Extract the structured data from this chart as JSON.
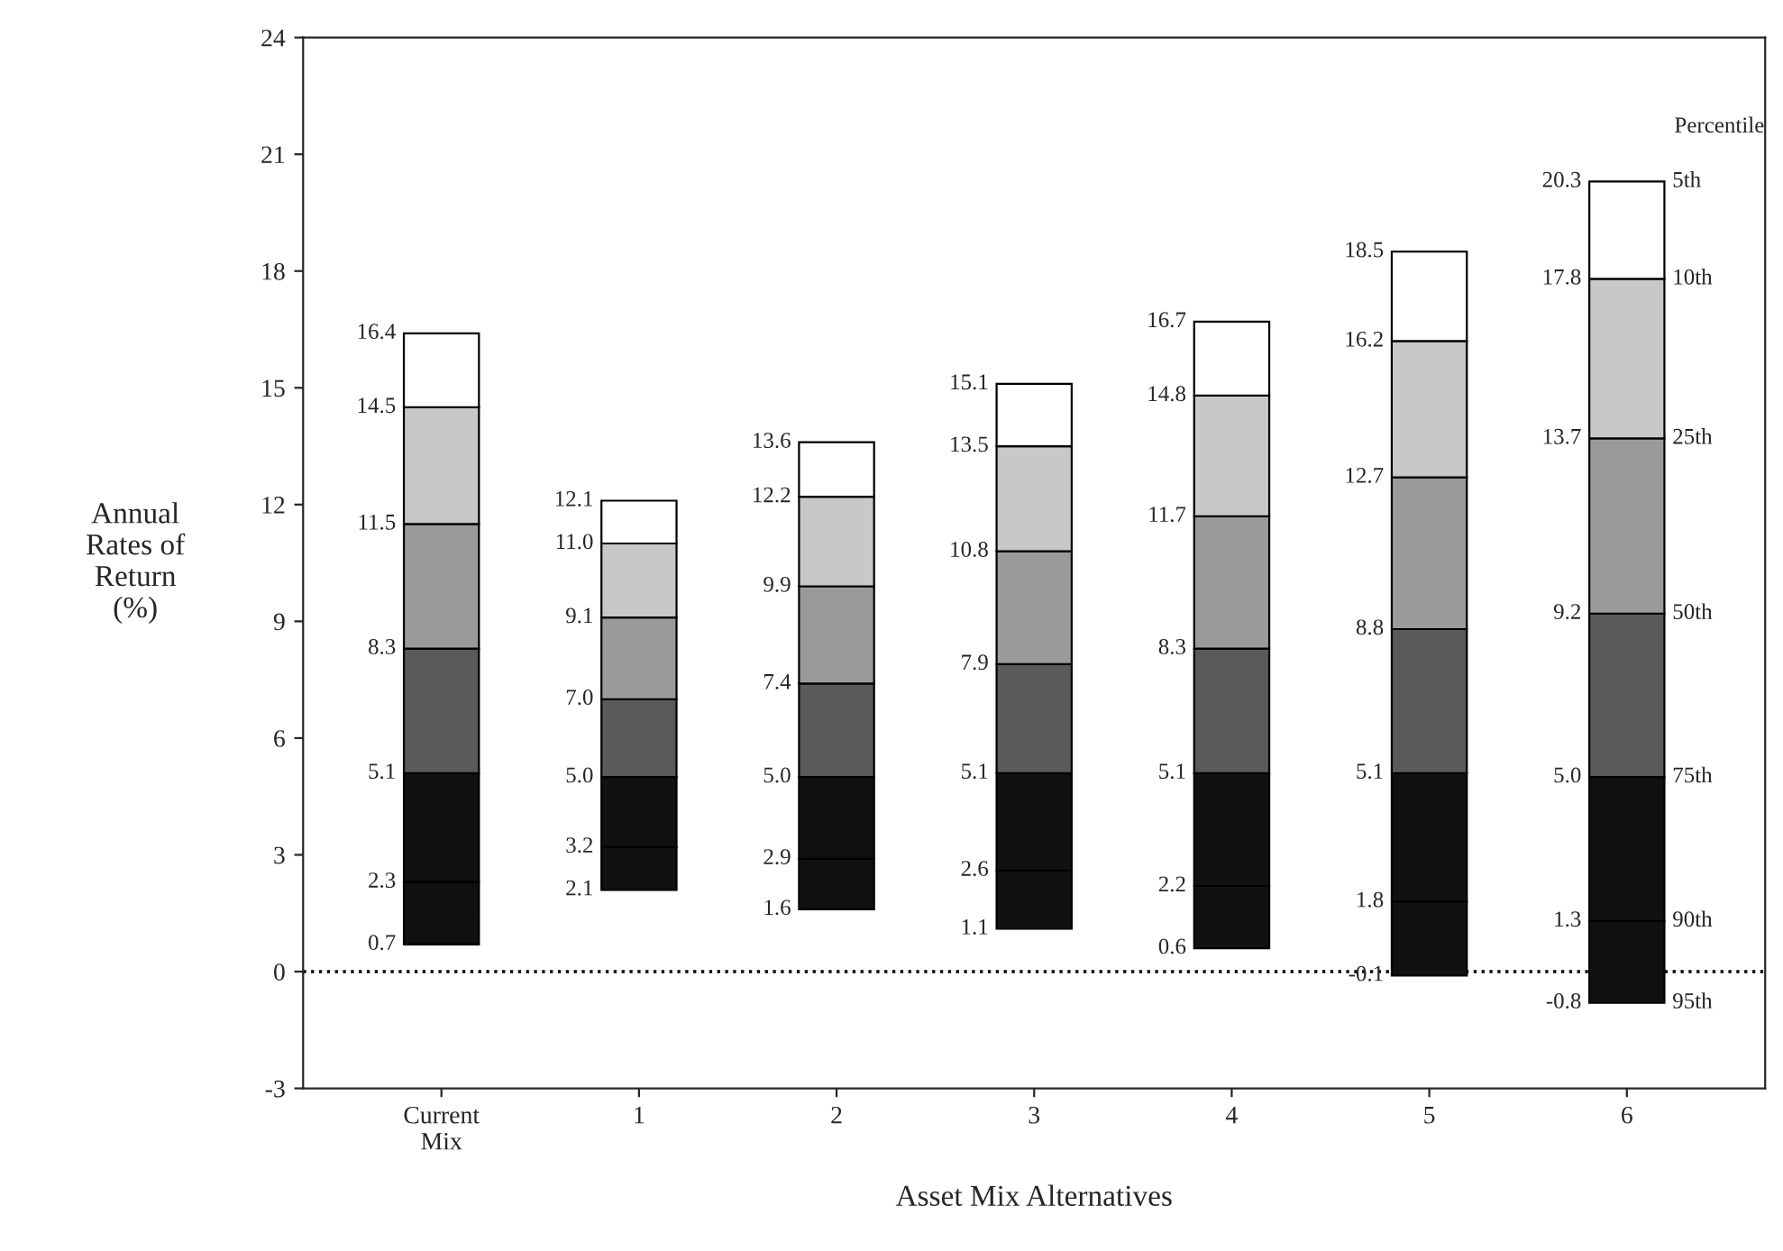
{
  "chart_data": {
    "type": "bar",
    "xlabel": "Asset Mix Alternatives",
    "ylabel": "Annual\nRates of\nReturn\n(%)",
    "categories": [
      "Current\nMix",
      "1",
      "2",
      "3",
      "4",
      "5",
      "6"
    ],
    "series": [
      {
        "color": "#111111",
        "base": [
          0.7,
          2.1,
          1.6,
          1.1,
          0.6,
          -0.1,
          -0.8
        ],
        "values": [
          1.6,
          1.1,
          1.3,
          1.5,
          1.6,
          1.9,
          2.1
        ]
      },
      {
        "color": "#111111",
        "base": [
          2.3,
          3.2,
          2.9,
          2.6,
          2.2,
          1.8,
          1.3
        ],
        "values": [
          2.8,
          1.8,
          2.1,
          2.5,
          2.9,
          3.3,
          3.7
        ]
      },
      {
        "color": "#5a5a5a",
        "base": [
          5.1,
          5.0,
          5.0,
          5.1,
          5.1,
          5.1,
          5.0
        ],
        "values": [
          3.2,
          2.0,
          2.4,
          2.8,
          3.2,
          3.7,
          4.2
        ]
      },
      {
        "color": "#9a9a9a",
        "base": [
          8.3,
          7.0,
          7.4,
          7.9,
          8.3,
          8.8,
          9.2
        ],
        "values": [
          3.2,
          2.1,
          2.5,
          2.9,
          3.4,
          3.9,
          4.5
        ]
      },
      {
        "color": "#c8c8c8",
        "base": [
          11.5,
          9.1,
          9.9,
          10.8,
          11.7,
          12.7,
          13.7
        ],
        "values": [
          3.0,
          1.9,
          2.3,
          2.7,
          3.1,
          3.5,
          4.1
        ]
      },
      {
        "color": "#ffffff",
        "base": [
          14.5,
          11.0,
          12.2,
          13.5,
          14.8,
          16.2,
          17.8
        ],
        "values": [
          1.9,
          1.1,
          1.4,
          1.6,
          1.9,
          2.3,
          2.5
        ]
      }
    ],
    "ylim": [
      -3,
      24
    ],
    "yticks": [
      -3,
      0,
      3,
      6,
      9,
      12,
      15,
      18,
      21,
      24
    ],
    "ref_lines": [
      {
        "axis": "y",
        "value": 0,
        "color": "#000000",
        "line_style": "dotted"
      }
    ],
    "annotations": [
      "Percentile",
      {
        "text": "0.7",
        "x": "Current\nMix",
        "y": 0.7
      },
      {
        "text": "2.3",
        "x": "Current\nMix",
        "y": 2.3
      },
      {
        "text": "5.1",
        "x": "Current\nMix",
        "y": 5.1
      },
      {
        "text": "8.3",
        "x": "Current\nMix",
        "y": 8.3
      },
      {
        "text": "11.5",
        "x": "Current\nMix",
        "y": 11.5
      },
      {
        "text": "14.5",
        "x": "Current\nMix",
        "y": 14.5
      },
      {
        "text": "16.4",
        "x": "Current\nMix",
        "y": 16.4
      },
      {
        "text": "2.1",
        "x": "1",
        "y": 2.1
      },
      {
        "text": "3.2",
        "x": "1",
        "y": 3.2
      },
      {
        "text": "5.0",
        "x": "1",
        "y": 5.0
      },
      {
        "text": "7.0",
        "x": "1",
        "y": 7.0
      },
      {
        "text": "9.1",
        "x": "1",
        "y": 9.1
      },
      {
        "text": "11.0",
        "x": "1",
        "y": 11.0
      },
      {
        "text": "12.1",
        "x": "1",
        "y": 12.1
      },
      {
        "text": "1.6",
        "x": "2",
        "y": 1.6
      },
      {
        "text": "2.9",
        "x": "2",
        "y": 2.9
      },
      {
        "text": "5.0",
        "x": "2",
        "y": 5.0
      },
      {
        "text": "7.4",
        "x": "2",
        "y": 7.4
      },
      {
        "text": "9.9",
        "x": "2",
        "y": 9.9
      },
      {
        "text": "12.2",
        "x": "2",
        "y": 12.2
      },
      {
        "text": "13.6",
        "x": "2",
        "y": 13.6
      },
      {
        "text": "1.1",
        "x": "3",
        "y": 1.1
      },
      {
        "text": "2.6",
        "x": "3",
        "y": 2.6
      },
      {
        "text": "5.1",
        "x": "3",
        "y": 5.1
      },
      {
        "text": "7.9",
        "x": "3",
        "y": 7.9
      },
      {
        "text": "10.8",
        "x": "3",
        "y": 10.8
      },
      {
        "text": "13.5",
        "x": "3",
        "y": 13.5
      },
      {
        "text": "15.1",
        "x": "3",
        "y": 15.1
      },
      {
        "text": "0.6",
        "x": "4",
        "y": 0.6
      },
      {
        "text": "2.2",
        "x": "4",
        "y": 2.2
      },
      {
        "text": "5.1",
        "x": "4",
        "y": 5.1
      },
      {
        "text": "8.3",
        "x": "4",
        "y": 8.3
      },
      {
        "text": "11.7",
        "x": "4",
        "y": 11.7
      },
      {
        "text": "14.8",
        "x": "4",
        "y": 14.8
      },
      {
        "text": "16.7",
        "x": "4",
        "y": 16.7
      },
      {
        "text": "-0.1",
        "x": "5",
        "y": -0.1
      },
      {
        "text": "1.8",
        "x": "5",
        "y": 1.8
      },
      {
        "text": "5.1",
        "x": "5",
        "y": 5.1
      },
      {
        "text": "8.8",
        "x": "5",
        "y": 8.8
      },
      {
        "text": "12.7",
        "x": "5",
        "y": 12.7
      },
      {
        "text": "16.2",
        "x": "5",
        "y": 16.2
      },
      {
        "text": "18.5",
        "x": "5",
        "y": 18.5
      },
      {
        "text": "-0.8",
        "x": "6",
        "y": -0.8
      },
      {
        "text": "1.3",
        "x": "6",
        "y": 1.3
      },
      {
        "text": "5.0",
        "x": "6",
        "y": 5.0
      },
      {
        "text": "9.2",
        "x": "6",
        "y": 9.2
      },
      {
        "text": "13.7",
        "x": "6",
        "y": 13.7
      },
      {
        "text": "17.8",
        "x": "6",
        "y": 17.8
      },
      {
        "text": "20.3",
        "x": "6",
        "y": 20.3
      },
      {
        "text": "95th",
        "x": "6",
        "y": -0.8
      },
      {
        "text": "90th",
        "x": "6",
        "y": 1.3
      },
      {
        "text": "75th",
        "x": "6",
        "y": 5.0
      },
      {
        "text": "50th",
        "x": "6",
        "y": 9.2
      },
      {
        "text": "25th",
        "x": "6",
        "y": 13.7
      },
      {
        "text": "10th",
        "x": "6",
        "y": 17.8
      },
      {
        "text": "5th",
        "x": "6",
        "y": 20.3
      }
    ],
    "grid": false,
    "legend": false
  }
}
